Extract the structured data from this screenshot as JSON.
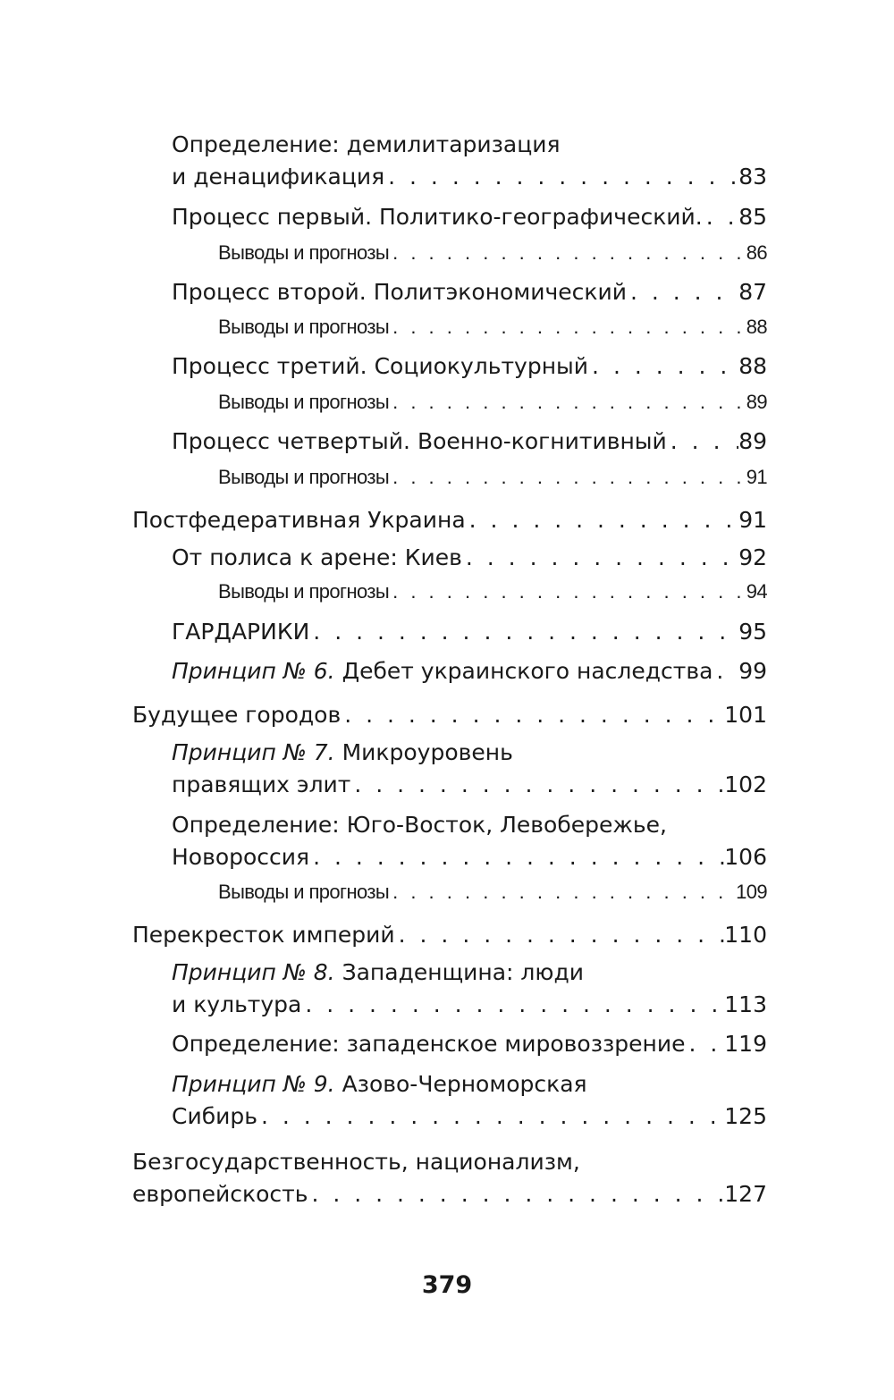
{
  "toc": [
    {
      "level": 2,
      "lines": [
        "Определение: демилитаризация",
        "и денацификация"
      ],
      "page": "83"
    },
    {
      "level": 2,
      "lines": [
        "Процесс первый. Политико-географический."
      ],
      "page": "85"
    },
    {
      "level": 3,
      "lines": [
        "Выводы и прогнозы"
      ],
      "page": "86"
    },
    {
      "level": 2,
      "lines": [
        "Процесс второй. Политэкономический"
      ],
      "page": "87"
    },
    {
      "level": 3,
      "lines": [
        "Выводы и прогнозы"
      ],
      "page": "88"
    },
    {
      "level": 2,
      "lines": [
        "Процесс третий. Социокультурный"
      ],
      "page": "88"
    },
    {
      "level": 3,
      "lines": [
        "Выводы и прогнозы"
      ],
      "page": "89"
    },
    {
      "level": 2,
      "lines": [
        "Процесс четвертый. Военно-когнитивный"
      ],
      "page": "89"
    },
    {
      "level": 3,
      "lines": [
        "Выводы и прогнозы"
      ],
      "page": "91"
    },
    {
      "level": 1,
      "lines": [
        "Постфедеративная Украина"
      ],
      "page": "91"
    },
    {
      "level": 2,
      "lines": [
        "От полиса к арене: Киев"
      ],
      "page": "92"
    },
    {
      "level": 3,
      "lines": [
        "Выводы и прогнозы"
      ],
      "page": "94"
    },
    {
      "level": 2,
      "lines": [
        "ГАРДАРИКИ"
      ],
      "page": "95"
    },
    {
      "level": 2,
      "prefix": "Принцип № 6.",
      "lines": [
        " Дебет украинского наследства"
      ],
      "page": "99"
    },
    {
      "level": 1,
      "lines": [
        "Будущее городов"
      ],
      "page": "101"
    },
    {
      "level": 2,
      "prefix": "Принцип № 7.",
      "lines": [
        " Микроуровень",
        "правящих элит"
      ],
      "page": "102"
    },
    {
      "level": 2,
      "lines": [
        "Определение: Юго-Восток, Левобережье,",
        "Новороссия"
      ],
      "page": "106"
    },
    {
      "level": 3,
      "lines": [
        "Выводы и прогнозы"
      ],
      "page": "109"
    },
    {
      "level": 1,
      "lines": [
        "Перекресток империй"
      ],
      "page": "110"
    },
    {
      "level": 2,
      "prefix": "Принцип № 8.",
      "lines": [
        " Западенщина: люди",
        "и культура"
      ],
      "page": "113"
    },
    {
      "level": 2,
      "lines": [
        "Определение: западенское мировоззрение"
      ],
      "page": "119"
    },
    {
      "level": 2,
      "prefix": "Принцип № 9.",
      "lines": [
        " Азово-Черноморская",
        "Сибирь"
      ],
      "page": "125"
    },
    {
      "level": 1,
      "lines": [
        "Безгосударственность, национализм,",
        "европейскость"
      ],
      "page": "127"
    }
  ],
  "page_number": "379"
}
